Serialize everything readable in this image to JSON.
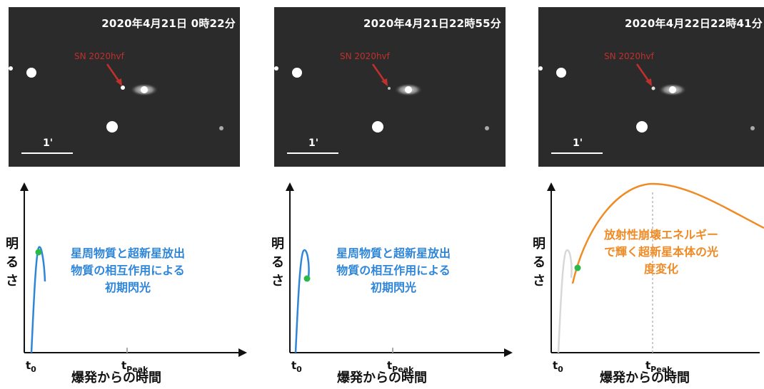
{
  "colors": {
    "early": "#2f86d8",
    "radioactive": "#f08a24",
    "point": "#2bb84a",
    "arrow": "#c0302d",
    "faded": "#d8d8d8"
  },
  "panels": [
    {
      "timestamp": "2020年4月21日 0時22分",
      "sn_label": "SN 2020hvf",
      "scale_label": "1'",
      "ylabel": "明るさ",
      "xlabel": "爆発からの時間",
      "t0_main": "t",
      "t0_sub": "0",
      "tpeak_main": "t",
      "tpeak_sub": "Peak",
      "note_lines": [
        "星周物質と超新星放出",
        "物質の相互作用による",
        "初期閃光"
      ],
      "note_color": "early"
    },
    {
      "timestamp": "2020年4月21日22時55分",
      "sn_label": "SN 2020hvf",
      "scale_label": "1'",
      "ylabel": "明るさ",
      "xlabel": "爆発からの時間",
      "t0_main": "t",
      "t0_sub": "0",
      "tpeak_main": "t",
      "tpeak_sub": "Peak",
      "note_lines": [
        "星周物質と超新星放出",
        "物質の相互作用による",
        "初期閃光"
      ],
      "note_color": "early"
    },
    {
      "timestamp": "2020年4月22日22時41分",
      "sn_label": "SN 2020hvf",
      "scale_label": "1'",
      "ylabel": "明るさ",
      "xlabel": "爆発からの時間",
      "t0_main": "t",
      "t0_sub": "0",
      "tpeak_main": "t",
      "tpeak_sub": "Peak",
      "note_lines": [
        "放射性崩壊エネルギー",
        "で輝く超新星本体の光",
        "度変化"
      ],
      "note_color": "radioactive"
    }
  ]
}
